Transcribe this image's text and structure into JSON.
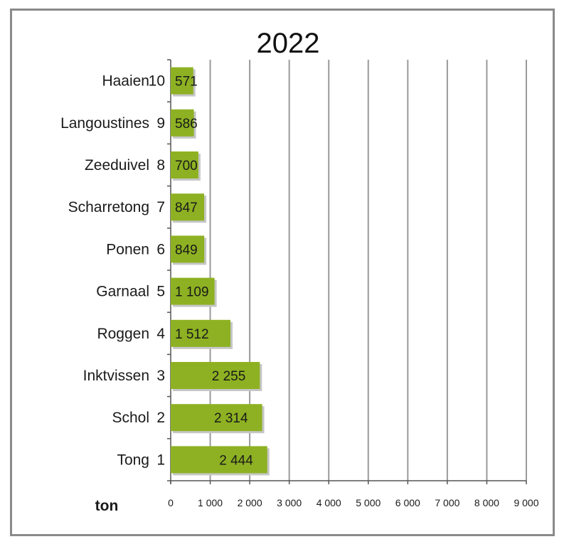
{
  "chart_data": {
    "type": "bar",
    "orientation": "horizontal",
    "title": "2022",
    "unit_label": "ton",
    "categories": [
      "Haaien",
      "Langoustines",
      "Zeeduivel",
      "Scharretong",
      "Ponen",
      "Garnaal",
      "Roggen",
      "Inktvissen",
      "Schol",
      "Tong"
    ],
    "ranks": [
      "10",
      "9",
      "8",
      "7",
      "6",
      "5",
      "4",
      "3",
      "2",
      "1"
    ],
    "values": [
      571,
      586,
      700,
      847,
      849,
      1109,
      1512,
      2255,
      2314,
      2444
    ],
    "value_labels": [
      "571",
      "586",
      "700",
      "847",
      "849",
      "1 109",
      "1 512",
      "2 255",
      "2 314",
      "2 444"
    ],
    "xlim": [
      0,
      9000
    ],
    "x_ticks": [
      0,
      1000,
      2000,
      3000,
      4000,
      5000,
      6000,
      7000,
      8000,
      9000
    ],
    "x_tick_labels": [
      "0",
      "1 000",
      "2 000",
      "3 000",
      "4 000",
      "5 000",
      "6 000",
      "7 000",
      "8 000",
      "9 000"
    ],
    "grid": true,
    "colors": {
      "bar": "#8db122",
      "bar_shadow": "#c6c6c6",
      "grid": "#9a9a9a",
      "axis": "#555555",
      "frame": "#8a8a8a"
    }
  }
}
